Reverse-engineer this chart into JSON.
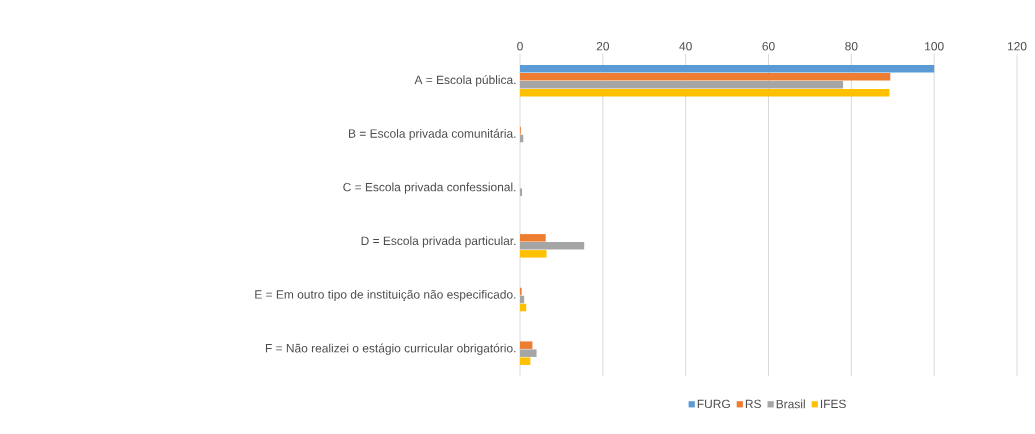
{
  "chart_data": {
    "type": "bar",
    "orientation": "horizontal",
    "categories": [
      "A =  Escola pública.",
      "B =  Escola privada comunitária.",
      "C =  Escola privada confessional.",
      "D =  Escola privada particular.",
      "E =  Em outro tipo de instituição não especificado.",
      "F =  Não realizei o estágio curricular obrigatório."
    ],
    "series": [
      {
        "name": "FURG",
        "color": "#5b9bd5",
        "values": [
          100,
          0,
          0,
          0,
          0,
          0
        ]
      },
      {
        "name": "RS",
        "color": "#ed7d31",
        "values": [
          89.4,
          0.2,
          null,
          6.2,
          0.4,
          3.0
        ]
      },
      {
        "name": "Brasil",
        "color": "#a5a5a5",
        "values": [
          78.0,
          0.8,
          0.5,
          15.5,
          1.0,
          4.0
        ]
      },
      {
        "name": "IFES",
        "color": "#ffc000",
        "values": [
          89.2,
          null,
          null,
          6.4,
          1.5,
          2.5
        ]
      }
    ],
    "xlim": [
      0,
      120
    ],
    "xticks": [
      0,
      20,
      40,
      60,
      80,
      100,
      120
    ],
    "grid": "x",
    "legend": "bottom"
  }
}
